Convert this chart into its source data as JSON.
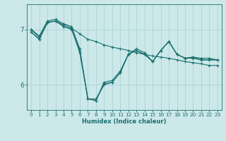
{
  "xlabel": "Humidex (Indice chaleur)",
  "background_color": "#cce8e8",
  "grid_color": "#aad4d4",
  "line_color": "#1a7070",
  "xlim": [
    -0.5,
    23.5
  ],
  "ylim": [
    5.55,
    7.45
  ],
  "yticks": [
    6,
    7
  ],
  "xticks": [
    0,
    1,
    2,
    3,
    4,
    5,
    6,
    7,
    8,
    9,
    10,
    11,
    12,
    13,
    14,
    15,
    16,
    17,
    18,
    19,
    20,
    21,
    22,
    23
  ],
  "series": [
    [
      6.95,
      6.82,
      7.12,
      7.15,
      7.08,
      7.02,
      6.92,
      6.82,
      6.78,
      6.72,
      6.68,
      6.65,
      6.62,
      6.58,
      6.55,
      6.52,
      6.5,
      6.48,
      6.45,
      6.42,
      6.4,
      6.38,
      6.35,
      6.35
    ],
    [
      6.95,
      6.82,
      7.12,
      7.15,
      7.05,
      7.0,
      6.62,
      5.75,
      5.72,
      6.05,
      6.08,
      6.25,
      6.55,
      6.62,
      6.55,
      6.42,
      6.62,
      6.78,
      6.55,
      6.48,
      6.5,
      6.48,
      6.48,
      6.45
    ],
    [
      7.0,
      6.88,
      7.15,
      7.18,
      7.1,
      7.05,
      6.65,
      5.75,
      5.75,
      6.0,
      6.05,
      6.22,
      6.55,
      6.65,
      6.58,
      6.42,
      6.62,
      6.78,
      6.55,
      6.48,
      6.48,
      6.45,
      6.45,
      6.45
    ],
    [
      7.0,
      6.85,
      7.12,
      7.15,
      7.05,
      7.0,
      6.58,
      5.75,
      5.72,
      6.02,
      6.05,
      6.22,
      6.55,
      6.62,
      6.55,
      6.42,
      6.62,
      6.78,
      6.55,
      6.48,
      6.5,
      6.45,
      6.45,
      6.45
    ]
  ]
}
